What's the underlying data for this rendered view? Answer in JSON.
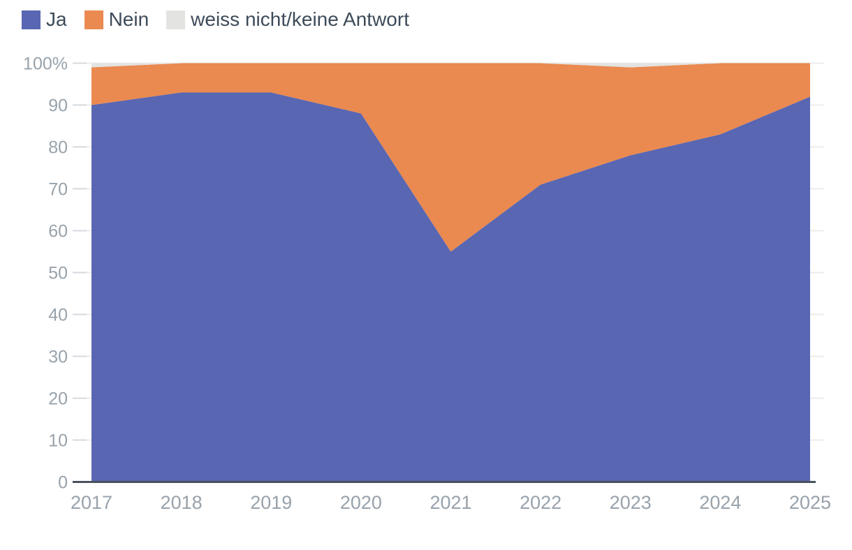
{
  "legend": {
    "items": [
      {
        "label": "Ja"
      },
      {
        "label": "Nein"
      },
      {
        "label": "weiss nicht/keine Antwort"
      }
    ]
  },
  "chart_data": {
    "type": "area",
    "stacked": true,
    "percent_stacked": true,
    "title": "",
    "xlabel": "",
    "ylabel": "",
    "x": [
      2017,
      2018,
      2019,
      2020,
      2021,
      2022,
      2023,
      2024,
      2025
    ],
    "series": [
      {
        "name": "Ja",
        "color": "#5966b2",
        "values": [
          90,
          93,
          93,
          88,
          55,
          71,
          78,
          83,
          92
        ]
      },
      {
        "name": "Nein",
        "color": "#ea8950",
        "values": [
          9,
          7,
          7,
          12,
          45,
          29,
          21,
          17,
          8
        ]
      },
      {
        "name": "weiss nicht/keine Antwort",
        "color": "#e3e3e1",
        "values": [
          1,
          0,
          0,
          0,
          0,
          0,
          1,
          0,
          0
        ]
      }
    ],
    "ylim": [
      0,
      100
    ],
    "yticks": [
      0,
      10,
      20,
      30,
      40,
      50,
      60,
      70,
      80,
      90,
      100
    ],
    "ytick_labels": [
      "0",
      "10",
      "20",
      "30",
      "40",
      "50",
      "60",
      "70",
      "80",
      "90",
      "100%"
    ],
    "grid": true,
    "legend_position": "top-left",
    "colors": {
      "axis_text": "#98a2ab",
      "legend_text": "#3d4b59",
      "gridline": "#ececec",
      "tick": "#d4d9dd",
      "baseline": "#49525d",
      "background": "#ffffff"
    }
  }
}
